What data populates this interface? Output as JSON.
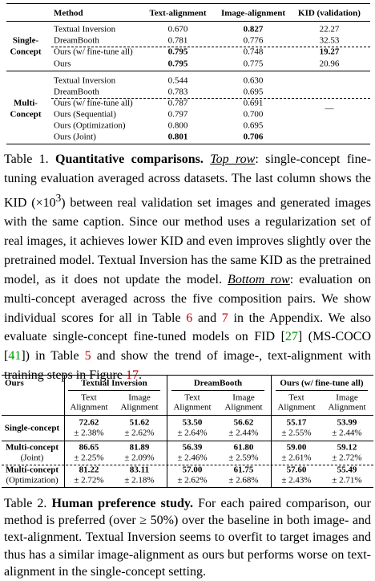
{
  "table1": {
    "columns": [
      "Method",
      "Text-alignment",
      "Image-alignment",
      "KID (validation)"
    ],
    "groups": [
      {
        "label": [
          "Single-",
          "Concept"
        ],
        "rows": [
          [
            "Textual Inversion",
            "0.670",
            "0.827",
            "22.27"
          ],
          [
            "DreamBooth",
            "0.781",
            "0.776",
            "32.53"
          ],
          [
            "Ours (w/ fine-tune all)",
            "0.795",
            "0.748",
            "19.27"
          ],
          [
            "Ours",
            "0.795",
            "0.775",
            "20.96"
          ]
        ]
      },
      {
        "label": [
          "Multi-",
          "Concept"
        ],
        "kid": "—",
        "rows": [
          [
            "Textual Inversion",
            "0.544",
            "0.630"
          ],
          [
            "DreamBooth",
            "0.783",
            "0.695"
          ],
          [
            "Ours (w/ fine-tune all)",
            "0.787",
            "0.691"
          ],
          [
            "Ours (Sequential)",
            "0.797",
            "0.700"
          ],
          [
            "Ours (Optimization)",
            "0.800",
            "0.695"
          ],
          [
            "Ours (Joint)",
            "0.801",
            "0.706"
          ]
        ]
      }
    ]
  },
  "caption1": {
    "parts": [
      "Table 1. ",
      "Quantitative comparisons.",
      " ",
      "Top row",
      ": single-concept fine-tuning evaluation averaged across datasets. The last column shows the KID (",
      "×10",
      "3",
      ") between real validation set images and generated images with the same caption. Since our method uses a regularization set of real images, it achieves lower KID and even improves slightly over the pretrained model. Textual Inversion has the same KID as the pretrained model, as it does not update the model. ",
      "Bottom row",
      ": evaluation on multi-concept averaged across the five composition pairs. We show individual scores for all in Table ",
      "6",
      " and ",
      "7",
      " in the Appendix. We also evaluate single-concept fine-tuned models on FID [",
      "27",
      "] (MS-COCO [",
      "41",
      "]) in Table ",
      "5",
      " and show the trend of image-, text-alignment with training steps in Figure ",
      "17",
      "."
    ]
  },
  "table2": {
    "corner": "Ours",
    "groups": [
      {
        "name": "Textual Inversion",
        "columns": [
          [
            "Text",
            "Alignment"
          ],
          [
            "Image",
            "Alignment"
          ]
        ]
      },
      {
        "name": "DreamBooth",
        "columns": [
          [
            "Text",
            "Alignment"
          ],
          [
            "Image",
            "Alignment"
          ]
        ]
      },
      {
        "name": "Ours (w/ fine-tune all)",
        "columns": [
          [
            "Text",
            "Alignment"
          ],
          [
            "Image",
            "Alignment"
          ]
        ]
      }
    ],
    "rows": [
      {
        "label": [
          "Single-concept"
        ],
        "values": [
          [
            "72.62",
            "± 2.38%"
          ],
          [
            "51.62",
            "± 2.62%"
          ],
          [
            "53.50",
            "± 2.64%"
          ],
          [
            "56.62",
            "± 2.44%"
          ],
          [
            "55.17",
            "± 2.55%"
          ],
          [
            "53.99",
            "± 2.44%"
          ]
        ]
      },
      {
        "label": [
          "Multi-concept",
          "(Joint)"
        ],
        "values": [
          [
            "86.65",
            "± 2.25%"
          ],
          [
            "81.89",
            "± 2.09%"
          ],
          [
            "56.39",
            "± 2.46%"
          ],
          [
            "61.80",
            "± 2.59%"
          ],
          [
            "59.00",
            "± 2.61%"
          ],
          [
            "59.12",
            "± 2.72%"
          ]
        ]
      },
      {
        "label": [
          "Multi-concept",
          "(Optimization)"
        ],
        "values": [
          [
            "81.22",
            "± 2.72%"
          ],
          [
            "83.11",
            "± 2.18%"
          ],
          [
            "57.00",
            "± 2.62%"
          ],
          [
            "61.75",
            "± 2.68%"
          ],
          [
            "57.60",
            "± 2.43%"
          ],
          [
            "55.49",
            "± 2.71%"
          ]
        ]
      }
    ]
  },
  "caption2": {
    "parts": [
      "Table 2. ",
      "Human preference study.",
      " For each paired comparison, our method is preferred (over ≥ 50%) over the baseline in both image- and text-alignment. Textual Inversion seems to overfit to target images and thus has a similar image-alignment as ours but performs worse on text-alignment in the single-concept setting."
    ]
  }
}
